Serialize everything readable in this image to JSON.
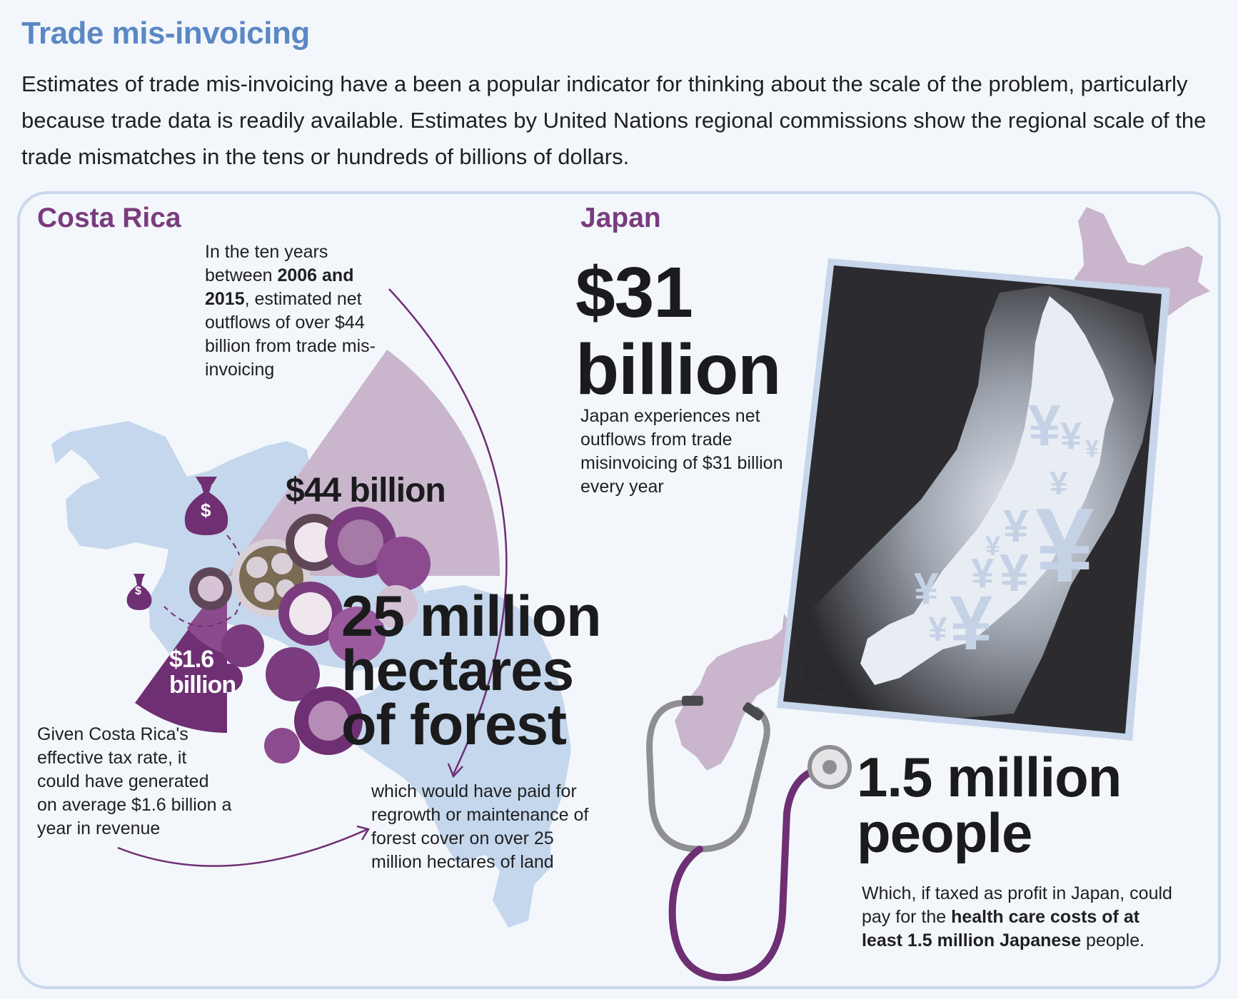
{
  "header": {
    "title": "Trade mis-invoicing",
    "intro": "Estimates of trade mis-invoicing have a been a popular indicator for thinking about the scale of the problem, particularly because trade data is readily available. Estimates by United Nations regional commissions show the regional scale of the trade mismatches in the tens or hundreds of billions of dollars."
  },
  "costa_rica": {
    "heading": "Costa Rica",
    "outflow_note": {
      "p1": "In the ten years between ",
      "bold": "2006 and 2015",
      "p2": ", estimated net outflows of over $44 billion from trade mis-invoicing"
    },
    "outflow_value": "$44 billion",
    "revenue_value_line1": "$1.6",
    "revenue_value_line2": "billion",
    "forest_big_line1": "25 million",
    "forest_big_line2": "hectares",
    "forest_big_line3": "of forest",
    "tax_note": "Given Costa Rica's effective tax rate, it could have generated on average $1.6 billion a year in revenue",
    "forest_note": "which would have paid for regrowth or maintenance of forest cover on over 25 million hectares of land",
    "money_bag_symbol": "$"
  },
  "japan": {
    "heading": "Japan",
    "big_line1": "$31",
    "big_line2": "billion",
    "outflow_note": "Japan experiences net outflows from trade misinvoicing of $31 billion every year",
    "people_line1": "1.5 million",
    "people_line2": "people",
    "people_note": {
      "p1": "Which, if taxed as profit in Japan, could pay for the ",
      "bold": "health care costs of at least 1.5 million Japanese",
      "p2": " people."
    },
    "currency_symbol": "¥"
  },
  "colors": {
    "title": "#5b88c4",
    "heading": "#7a3c7e",
    "purple_dark": "#6f2f73",
    "purple_light": "#c9b5cc",
    "land_blue": "#c5d7ec",
    "panel_border": "#c9d8ec"
  },
  "icons": [
    "money-bag-icon",
    "stethoscope-icon",
    "yen-icon",
    "flower-icon",
    "arrow-icon"
  ]
}
